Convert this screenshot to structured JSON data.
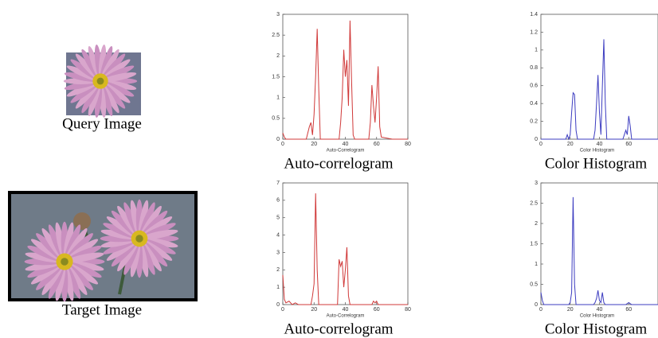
{
  "images": [
    {
      "caption": "Query Image"
    },
    {
      "caption": "Target Image"
    }
  ],
  "chart_data": [
    {
      "type": "line",
      "x_label": "Auto-Correlogram",
      "caption": "Auto-correlogram",
      "color": "#d03838",
      "x": [
        0,
        1,
        2,
        15,
        17,
        18,
        19,
        20,
        21,
        22,
        23,
        24,
        26,
        36,
        37,
        38,
        39,
        40,
        41,
        42,
        43,
        44,
        45,
        46,
        55,
        56,
        57,
        58,
        59,
        60,
        61,
        62,
        63,
        70,
        80
      ],
      "values": [
        0.15,
        0.05,
        0,
        0,
        0.3,
        0.4,
        0.1,
        0.6,
        1.5,
        2.65,
        1.2,
        0,
        0,
        0,
        0.4,
        1.0,
        2.15,
        1.5,
        1.9,
        0.8,
        2.85,
        1.4,
        0.1,
        0,
        0,
        0.4,
        1.3,
        0.8,
        0.4,
        1.0,
        1.75,
        0.3,
        0.05,
        0,
        0
      ],
      "xlim": [
        0,
        80
      ],
      "xticks": [
        0,
        20,
        40,
        60,
        80
      ],
      "ylim": [
        0,
        3
      ],
      "yticks": [
        0,
        0.5,
        1,
        1.5,
        2,
        2.5,
        3
      ]
    },
    {
      "type": "line",
      "x_label": "Color Histogram",
      "caption": "Color Histogram",
      "color": "#3c3cc0",
      "x": [
        0,
        10,
        17,
        18,
        19,
        20,
        21,
        22,
        23,
        24,
        25,
        36,
        37,
        38,
        39,
        40,
        41,
        42,
        43,
        44,
        45,
        56,
        58,
        59,
        60,
        61,
        62,
        70,
        80
      ],
      "values": [
        0,
        0,
        0,
        0.05,
        0,
        0.05,
        0.3,
        0.52,
        0.5,
        0.1,
        0,
        0,
        0.1,
        0.4,
        0.72,
        0.3,
        0.05,
        0.6,
        1.12,
        0.4,
        0,
        0,
        0.1,
        0.05,
        0.26,
        0.15,
        0,
        0,
        0
      ],
      "xlim": [
        0,
        80
      ],
      "xticks": [
        0,
        20,
        40,
        60
      ],
      "ylim": [
        0,
        1.4
      ],
      "yticks": [
        0,
        0.2,
        0.4,
        0.6,
        0.8,
        1,
        1.2,
        1.4
      ]
    },
    {
      "type": "line",
      "x_label": "Auto-Correlogram",
      "caption": "Auto-correlogram",
      "color": "#d03838",
      "x": [
        0,
        1,
        2,
        4,
        6,
        8,
        10,
        18,
        19,
        20,
        21,
        22,
        23,
        35,
        36,
        37,
        38,
        39,
        40,
        41,
        42,
        43,
        57,
        58,
        59,
        60,
        61,
        70,
        80
      ],
      "values": [
        1.7,
        0.3,
        0.1,
        0.2,
        0,
        0.1,
        0,
        0,
        0.5,
        1.2,
        6.4,
        2.0,
        0,
        0,
        2.6,
        2.2,
        2.5,
        1.0,
        2.0,
        3.3,
        0.5,
        0,
        0,
        0.2,
        0.1,
        0.2,
        0,
        0,
        0
      ],
      "xlim": [
        0,
        80
      ],
      "xticks": [
        0,
        20,
        40,
        60,
        80
      ],
      "ylim": [
        0,
        7
      ],
      "yticks": [
        0,
        1,
        2,
        3,
        4,
        5,
        6,
        7
      ]
    },
    {
      "type": "line",
      "x_label": "Color Histogram",
      "caption": "Color Histogram",
      "color": "#3c3cc0",
      "x": [
        0,
        1,
        2,
        10,
        19,
        20,
        21,
        22,
        23,
        24,
        36,
        37,
        38,
        39,
        40,
        41,
        42,
        43,
        44,
        58,
        60,
        62,
        70,
        80
      ],
      "values": [
        0.3,
        0.1,
        0,
        0,
        0,
        0.05,
        0.3,
        2.65,
        0.5,
        0,
        0,
        0.05,
        0.15,
        0.35,
        0.1,
        0.05,
        0.3,
        0.05,
        0,
        0,
        0.05,
        0,
        0,
        0
      ],
      "xlim": [
        0,
        80
      ],
      "xticks": [
        0,
        20,
        40,
        60
      ],
      "ylim": [
        0,
        3
      ],
      "yticks": [
        0,
        0.5,
        1,
        1.5,
        2,
        2.5,
        3
      ]
    }
  ]
}
